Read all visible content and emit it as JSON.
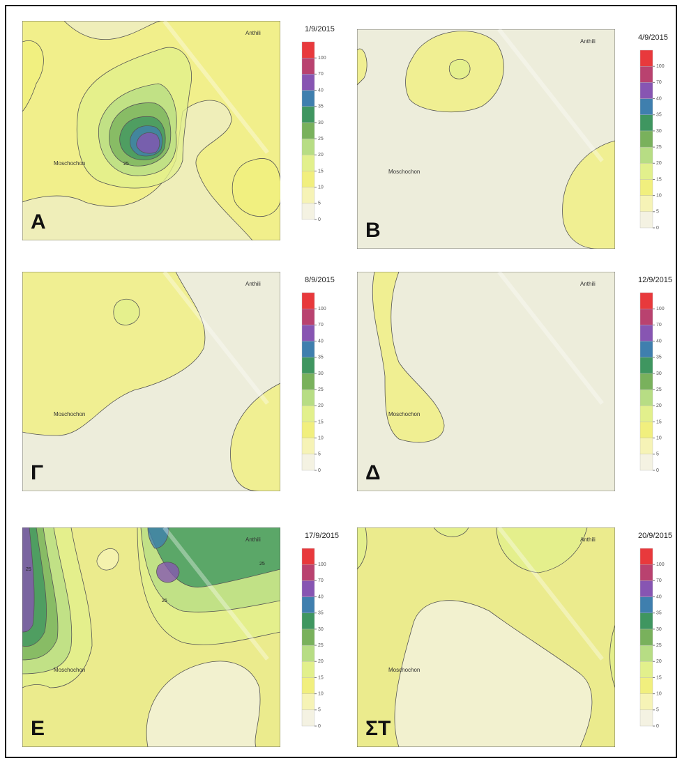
{
  "legend": {
    "ticks": [
      "0",
      "5",
      "10",
      "15",
      "20",
      "25",
      "30",
      "35",
      "40",
      "70",
      "100"
    ],
    "colors": [
      "#f4f2e2",
      "#f6f3b6",
      "#f1ef7e",
      "#e2f08c",
      "#b7dd84",
      "#79b15c",
      "#3f9660",
      "#3f7fae",
      "#8755b2",
      "#b9426f",
      "#e8393c"
    ]
  },
  "panels": [
    {
      "letter": "A",
      "date": "1/9/2015",
      "north": "Anthili",
      "west": "Moschochon",
      "contour_labels": [
        "25"
      ]
    },
    {
      "letter": "B",
      "date": "4/9/2015",
      "north": "Anthili",
      "west": "Moschochon",
      "contour_labels": []
    },
    {
      "letter": "Γ",
      "date": "8/9/2015",
      "north": "Anthili",
      "west": "Moschochon",
      "contour_labels": []
    },
    {
      "letter": "Δ",
      "date": "12/9/2015",
      "north": "Anthili",
      "west": "Moschochon",
      "contour_labels": []
    },
    {
      "letter": "E",
      "date": "17/9/2015",
      "north": "Anthili",
      "west": "Moschochon",
      "contour_labels": [
        "25",
        "25",
        "25"
      ]
    },
    {
      "letter": "ΣT",
      "date": "20/9/2015",
      "north": "Anthili",
      "west": "Moschochon",
      "contour_labels": []
    }
  ]
}
